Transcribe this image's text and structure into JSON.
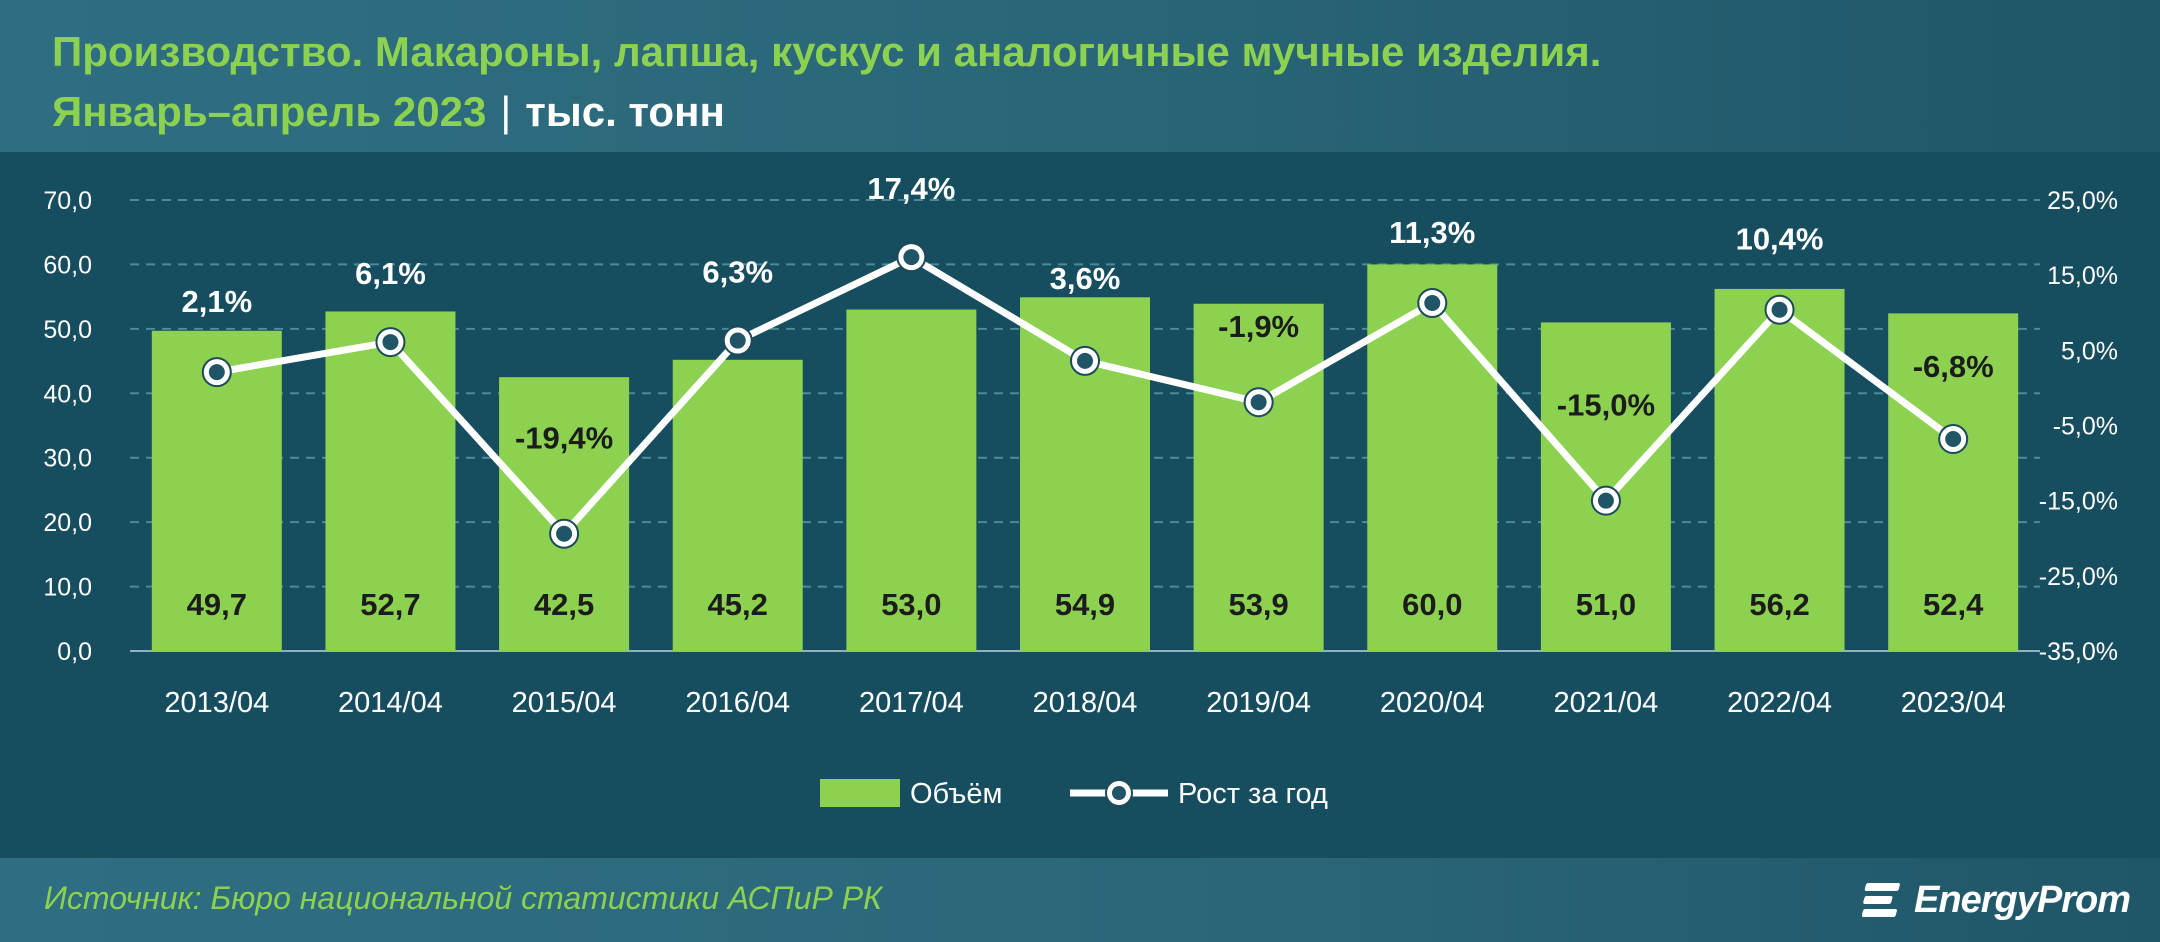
{
  "header": {
    "title_line1": "Производство. Макароны, лапша, кускус и аналогичные мучные изделия.",
    "title_period": "Январь–апрель 2023",
    "title_separator": "|",
    "title_unit": "тыс. тонн"
  },
  "footer": {
    "source": "Источник: Бюро национальной статистики АСПиР РК",
    "logo_text": "EnergyProm"
  },
  "colors": {
    "bar": "#8dd150",
    "line": "#ffffff",
    "grid": "#4a8c9c",
    "accent_green": "#8dd150"
  },
  "chart_data": {
    "type": "bar",
    "categories": [
      "2013/04",
      "2014/04",
      "2015/04",
      "2016/04",
      "2017/04",
      "2018/04",
      "2019/04",
      "2020/04",
      "2021/04",
      "2022/04",
      "2023/04"
    ],
    "series": [
      {
        "name": "Объём",
        "type": "bar",
        "axis": "left",
        "values": [
          49.7,
          52.7,
          42.5,
          45.2,
          53.0,
          54.9,
          53.9,
          60.0,
          51.0,
          56.2,
          52.4
        ],
        "labels": [
          "49,7",
          "52,7",
          "42,5",
          "45,2",
          "53,0",
          "54,9",
          "53,9",
          "60,0",
          "51,0",
          "56,2",
          "52,4"
        ]
      },
      {
        "name": "Рост за год",
        "type": "line",
        "axis": "right",
        "values": [
          2.1,
          6.1,
          -19.4,
          6.3,
          17.4,
          3.6,
          -1.9,
          11.3,
          -15.0,
          10.4,
          -6.8
        ],
        "labels": [
          "2,1%",
          "6,1%",
          "-19,4%",
          "6,3%",
          "17,4%",
          "3,6%",
          "-1,9%",
          "11,3%",
          "-15,0%",
          "10,4%",
          "-6,8%"
        ]
      }
    ],
    "y_left": {
      "range": [
        0,
        70
      ],
      "ticks": [
        "0,0",
        "10,0",
        "20,0",
        "30,0",
        "40,0",
        "50,0",
        "60,0",
        "70,0"
      ]
    },
    "y_right": {
      "range": [
        -35,
        25
      ],
      "ticks": [
        "-35,0%",
        "-25,0%",
        "-15,0%",
        "-5,0%",
        "5,0%",
        "15,0%",
        "25,0%"
      ]
    },
    "grid": true,
    "legend_position": "bottom"
  }
}
